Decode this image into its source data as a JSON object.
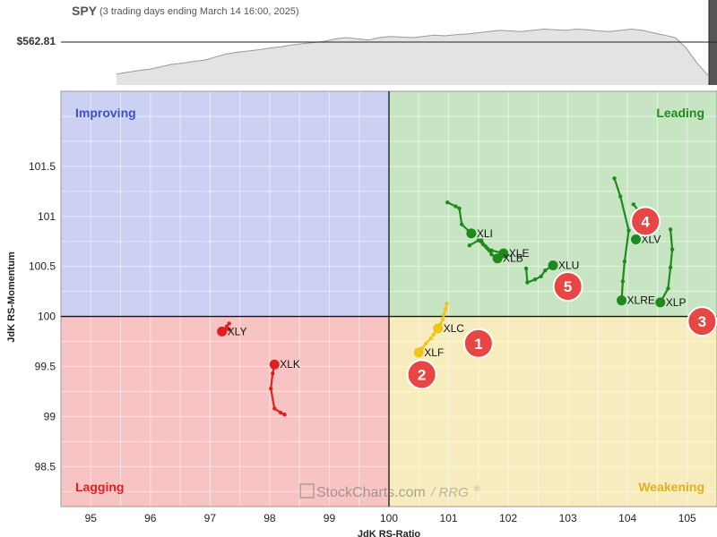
{
  "header": {
    "symbol": "SPY",
    "subtitle": "(3 trading days ending March 14 16:00, 2025)",
    "price_label": "$562.81"
  },
  "watermark": "StockCharts.com",
  "watermark_suffix": "/ RRG",
  "watermark_reg": "®",
  "quadrants": {
    "improving": {
      "label": "Improving",
      "color": "#ccd1f4",
      "text": "#3d50c8"
    },
    "leading": {
      "label": "Leading",
      "color": "#c7e5c2",
      "text": "#1e8a1e"
    },
    "weakening": {
      "label": "Weakening",
      "color": "#f7ecbd",
      "text": "#e0b020"
    },
    "lagging": {
      "label": "Lagging",
      "color": "#f7c3c3",
      "text": "#e02020"
    }
  },
  "chart_data": {
    "type": "scatter",
    "xlabel": "JdK RS-Ratio",
    "ylabel": "JdK RS-Momentum",
    "xlim": [
      94.5,
      105.5
    ],
    "ylim": [
      98.1,
      102.25
    ],
    "xticks": [
      95,
      96,
      97,
      98,
      99,
      100,
      101,
      102,
      103,
      104,
      105
    ],
    "yticks": [
      98.5,
      99,
      99.5,
      100,
      100.5,
      101,
      101.5
    ],
    "center": [
      100,
      100
    ],
    "grid": true,
    "series": [
      {
        "name": "XLI",
        "color": "#1e8a1e",
        "x": [
          100.98,
          101.12,
          101.18,
          101.22,
          101.38
        ],
        "y": [
          101.14,
          101.1,
          101.08,
          100.92,
          100.83
        ]
      },
      {
        "name": "XLE",
        "color": "#1e8a1e",
        "x": [
          101.35,
          101.5,
          101.58,
          101.65,
          101.72,
          101.92
        ],
        "y": [
          100.71,
          100.76,
          100.72,
          100.68,
          100.66,
          100.63
        ]
      },
      {
        "name": "XLB",
        "color": "#1e8a1e",
        "x": [
          101.55,
          101.62,
          101.68,
          101.72,
          101.82
        ],
        "y": [
          100.76,
          100.7,
          100.66,
          100.62,
          100.58
        ]
      },
      {
        "name": "XLU",
        "color": "#1e8a1e",
        "x": [
          102.3,
          102.32,
          102.45,
          102.55,
          102.62,
          102.75
        ],
        "y": [
          100.48,
          100.34,
          100.37,
          100.4,
          100.46,
          100.51
        ]
      },
      {
        "name": "XLV",
        "color": "#1e8a1e",
        "x": [
          104.1,
          104.18,
          104.22,
          104.28,
          104.2,
          104.14
        ],
        "y": [
          101.12,
          101.06,
          100.98,
          100.92,
          100.85,
          100.77
        ]
      },
      {
        "name": "XLRE",
        "color": "#1e8a1e",
        "x": [
          103.78,
          103.88,
          104.02,
          103.95,
          103.92,
          103.9
        ],
        "y": [
          101.38,
          101.2,
          100.86,
          100.55,
          100.35,
          100.16
        ]
      },
      {
        "name": "XLP",
        "color": "#1e8a1e",
        "x": [
          104.72,
          104.75,
          104.72,
          104.68,
          104.55
        ],
        "y": [
          100.87,
          100.67,
          100.49,
          100.28,
          100.14
        ]
      },
      {
        "name": "XLC",
        "color": "#f0c419",
        "x": [
          100.97,
          100.95,
          100.92,
          100.9,
          100.86,
          100.82
        ],
        "y": [
          100.13,
          100.07,
          100.02,
          99.97,
          99.92,
          99.88
        ]
      },
      {
        "name": "XLF",
        "color": "#f0c419",
        "x": [
          100.8,
          100.75,
          100.7,
          100.62,
          100.55,
          100.5
        ],
        "y": [
          99.87,
          99.82,
          99.78,
          99.73,
          99.68,
          99.64
        ]
      },
      {
        "name": "XLY",
        "color": "#e02020",
        "x": [
          97.32,
          97.28,
          97.32,
          97.25,
          97.2
        ],
        "y": [
          99.93,
          99.9,
          99.87,
          99.87,
          99.85
        ]
      },
      {
        "name": "XLK",
        "color": "#e02020",
        "x": [
          98.25,
          98.18,
          98.08,
          98.02,
          98.05,
          98.08
        ],
        "y": [
          99.02,
          99.04,
          99.08,
          99.28,
          99.43,
          99.52
        ]
      }
    ]
  },
  "badges": [
    {
      "label": "1",
      "x": 101.5,
      "y": 99.73
    },
    {
      "label": "2",
      "x": 100.55,
      "y": 99.42
    },
    {
      "label": "3",
      "x": 105.25,
      "y": 99.95
    },
    {
      "label": "4",
      "x": 104.3,
      "y": 100.95
    },
    {
      "label": "5",
      "x": 103.0,
      "y": 100.3
    }
  ],
  "spy_line": [
    0.12,
    0.15,
    0.18,
    0.2,
    0.24,
    0.28,
    0.3,
    0.33,
    0.35,
    0.4,
    0.45,
    0.48,
    0.5,
    0.52,
    0.55,
    0.57,
    0.6,
    0.62,
    0.64,
    0.66,
    0.7,
    0.72,
    0.7,
    0.68,
    0.72,
    0.74,
    0.73,
    0.72,
    0.74,
    0.76,
    0.75,
    0.77,
    0.78,
    0.8,
    0.82,
    0.84,
    0.83,
    0.82,
    0.84,
    0.86,
    0.85,
    0.84,
    0.86,
    0.85,
    0.83,
    0.82,
    0.84,
    0.86,
    0.84,
    0.8,
    0.76,
    0.72,
    0.55,
    0.3,
    0.1
  ]
}
